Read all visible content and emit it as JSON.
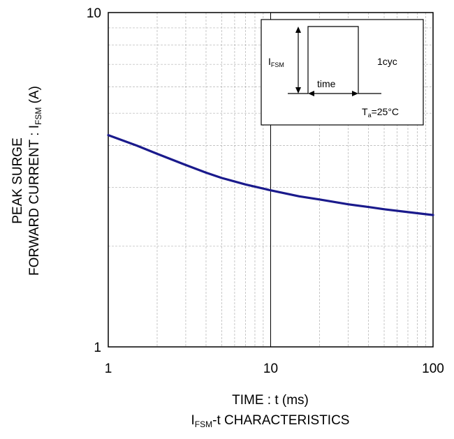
{
  "chart_data": {
    "type": "line",
    "title": "",
    "caption": {
      "main": "I",
      "sub": "FSM",
      "rest": "-t CHARACTERISTICS"
    },
    "xlabel": "TIME : t (ms)",
    "ylabel": {
      "line1": "PEAK SURGE",
      "line2_main": "FORWARD CURRENT : I",
      "line2_sub": "FSM",
      "line2_rest": " (A)"
    },
    "x_scale": "log",
    "y_scale": "log",
    "xlim": [
      1,
      100
    ],
    "ylim": [
      1,
      10
    ],
    "x_ticks": [
      "1",
      "10",
      "100"
    ],
    "y_ticks": [
      "1",
      "10"
    ],
    "grid": true,
    "series": [
      {
        "color": "#1a1a8c",
        "x": [
          1,
          1.5,
          2,
          3,
          4,
          5,
          7,
          10,
          15,
          20,
          30,
          40,
          50,
          70,
          100
        ],
        "y": [
          4.3,
          4.0,
          3.78,
          3.5,
          3.32,
          3.2,
          3.06,
          2.94,
          2.82,
          2.76,
          2.67,
          2.62,
          2.58,
          2.53,
          2.48
        ]
      }
    ],
    "inset": {
      "pulse_label_main": "I",
      "pulse_label_sub": "FSM",
      "time_label": "time",
      "cycle_label": "1cyc",
      "temp_label_main": "T",
      "temp_label_sub": "a",
      "temp_label_rest": "=25°C"
    }
  }
}
